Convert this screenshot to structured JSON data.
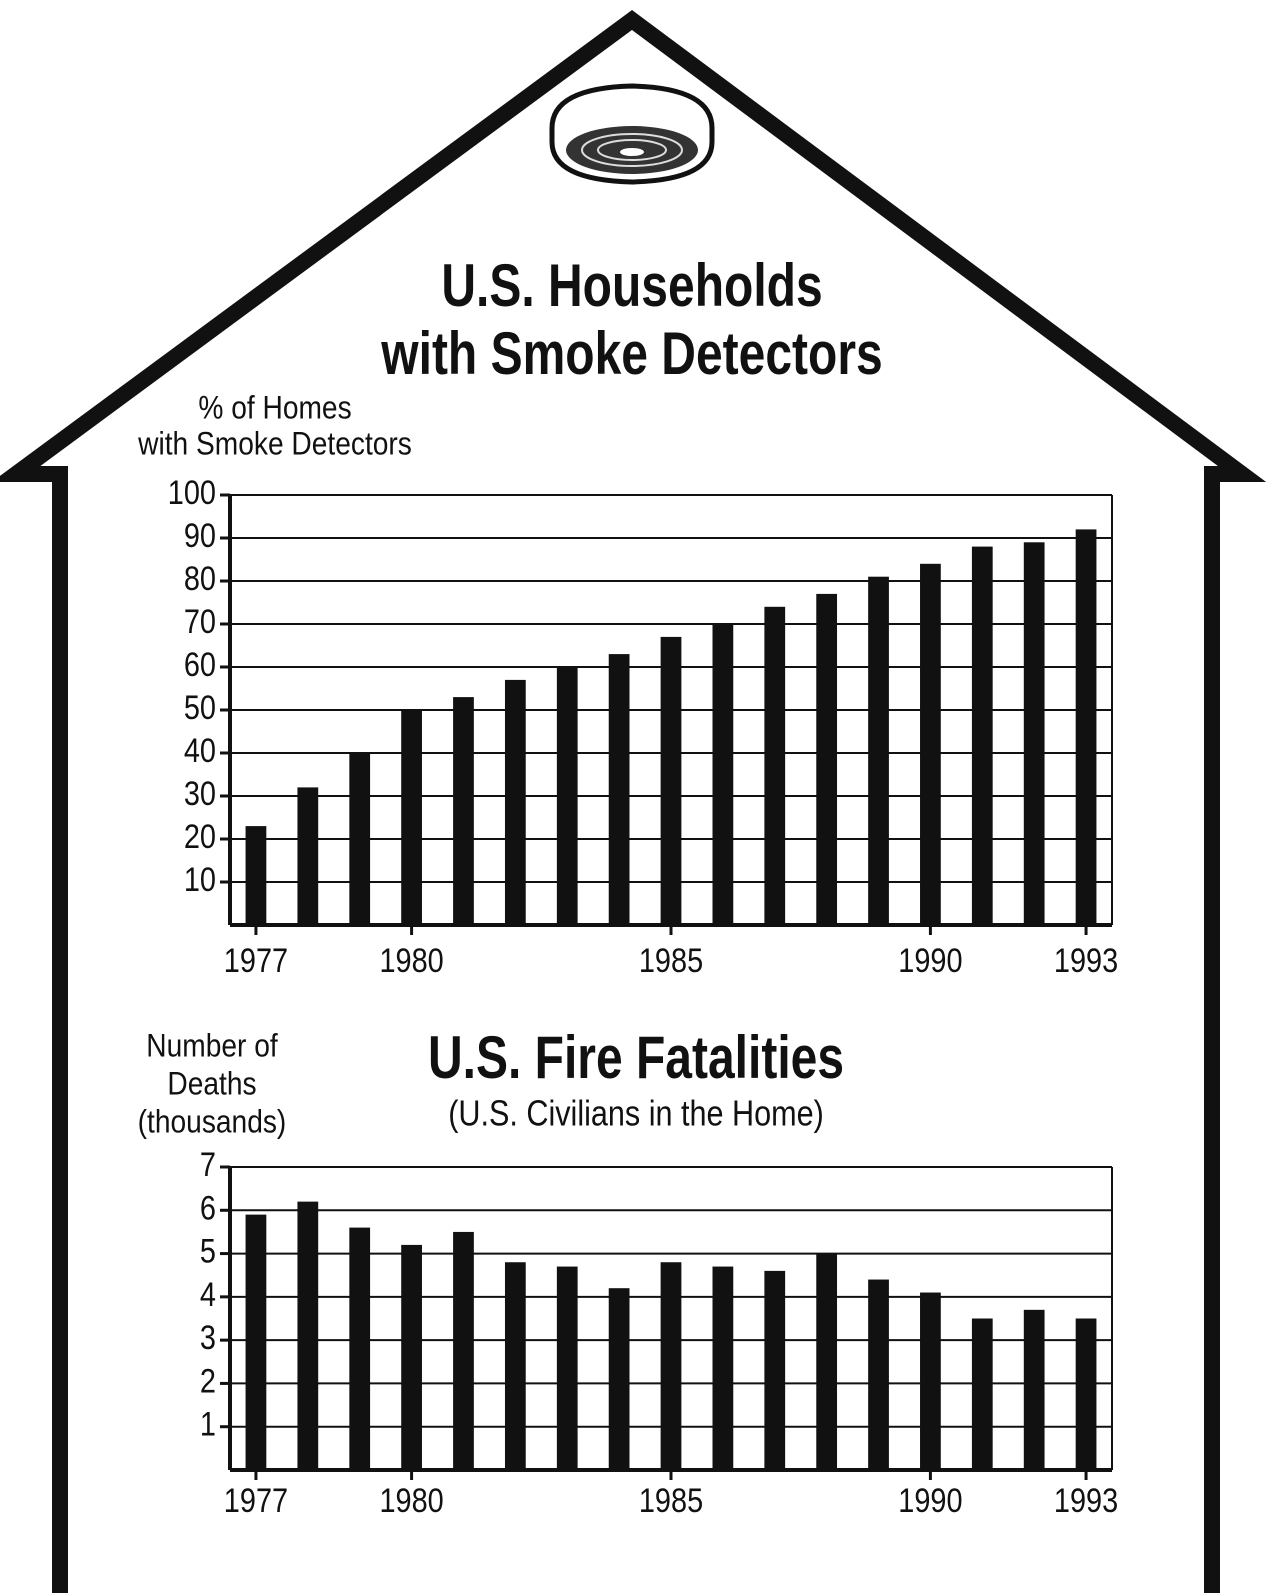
{
  "chart_data": [
    {
      "type": "bar",
      "title": [
        "U.S. Households",
        "with Smoke Detectors"
      ],
      "ylabel": [
        "% of Homes",
        "with Smoke Detectors"
      ],
      "categories": [
        "1977",
        null,
        null,
        "1980",
        null,
        null,
        null,
        null,
        "1985",
        null,
        null,
        null,
        null,
        "1990",
        null,
        null,
        "1993"
      ],
      "values": [
        23,
        32,
        40,
        50,
        53,
        57,
        60,
        63,
        67,
        70,
        74,
        77,
        81,
        84,
        88,
        89,
        92
      ],
      "color": "#111111",
      "ylim": [
        0,
        100
      ],
      "yticks": [
        10,
        20,
        30,
        40,
        50,
        60,
        70,
        80,
        90,
        100
      ],
      "grid": true
    },
    {
      "type": "bar",
      "title": [
        "U.S. Fire Fatalities"
      ],
      "subtitle": "(U.S. Civilians in the Home)",
      "ylabel": [
        "Number of",
        "Deaths",
        "(thousands)"
      ],
      "categories": [
        "1977",
        null,
        null,
        "1980",
        null,
        null,
        null,
        null,
        "1985",
        null,
        null,
        null,
        null,
        "1990",
        null,
        null,
        "1993"
      ],
      "values": [
        5.9,
        6.2,
        5.6,
        5.2,
        5.5,
        4.8,
        4.7,
        4.2,
        4.8,
        4.7,
        4.6,
        5.0,
        4.4,
        4.1,
        3.5,
        3.7,
        3.5
      ],
      "color": "#111111",
      "ylim": [
        0,
        7
      ],
      "yticks": [
        1,
        2,
        3,
        4,
        5,
        6,
        7
      ],
      "grid": true
    }
  ]
}
